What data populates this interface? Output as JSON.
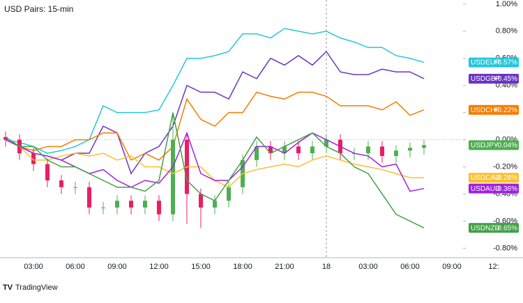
{
  "chart_data": {
    "type": "line",
    "title": "USD Pairs: 15-min",
    "source": "TradingView",
    "categories": [
      null,
      null,
      "03:00",
      null,
      null,
      "06:00",
      null,
      null,
      "09:00",
      null,
      null,
      "12:00",
      null,
      null,
      "15:00",
      null,
      null,
      "18:00",
      null,
      null,
      "21:00",
      null,
      null,
      "18",
      null,
      null,
      "03:00",
      null,
      null,
      "06:00",
      null,
      null,
      "09:00",
      null,
      null,
      "12:"
    ],
    "ylim": [
      -0.87,
      1.03
    ],
    "yticks": [
      {
        "value": 1.0,
        "label": "1.00%"
      },
      {
        "value": 0.8,
        "label": "0.80%"
      },
      {
        "value": 0.6,
        "label": "0.60%"
      },
      {
        "value": 0.4,
        "label": "0.40%"
      },
      {
        "value": 0.2,
        "label": "0.20%"
      },
      {
        "value": 0,
        "label": "0.00%"
      },
      {
        "value": -0.2,
        "label": "-0.20%"
      },
      {
        "value": -0.4,
        "label": "-0.40%"
      },
      {
        "value": -0.6,
        "label": "-0.60%"
      },
      {
        "value": -0.8,
        "label": "-0.80%"
      }
    ],
    "series": [
      {
        "name": "USDEUR",
        "color": "#26c6da",
        "values": [
          0,
          -0.02,
          -0.05,
          -0.1,
          -0.08,
          -0.05,
          0,
          0.25,
          0.2,
          0.2,
          0.2,
          0.22,
          0.4,
          0.6,
          0.6,
          0.62,
          0.65,
          0.78,
          0.78,
          0.75,
          0.82,
          0.8,
          0.78,
          0.8,
          0.75,
          0.72,
          0.68,
          0.68,
          0.62,
          0.6,
          0.57,
          null,
          null,
          null,
          null,
          null
        ],
        "value_labels": [
          null,
          null,
          null,
          null,
          null,
          null,
          null,
          null,
          null,
          null,
          null,
          null,
          null,
          null,
          null,
          null,
          null,
          null,
          null,
          null,
          null,
          null,
          null,
          null,
          null,
          null,
          null,
          null,
          null,
          null,
          "+0.57%",
          null,
          null,
          null,
          null,
          null
        ]
      },
      {
        "name": "USDGBP",
        "color": "#6a35c2",
        "values": [
          0,
          -0.05,
          -0.1,
          -0.12,
          -0.15,
          -0.1,
          -0.1,
          0.1,
          0.05,
          -0.25,
          -0.1,
          -0.05,
          0.1,
          0.4,
          0.35,
          0.35,
          0.3,
          0.5,
          0.45,
          0.6,
          0.55,
          0.62,
          0.55,
          0.65,
          0.5,
          0.48,
          0.48,
          0.52,
          0.5,
          0.5,
          0.45,
          null,
          null,
          null,
          null,
          null
        ],
        "value_labels": [
          null,
          null,
          null,
          null,
          null,
          null,
          null,
          null,
          null,
          null,
          null,
          null,
          null,
          null,
          null,
          null,
          null,
          null,
          null,
          null,
          null,
          null,
          null,
          null,
          null,
          null,
          null,
          null,
          null,
          null,
          "+0.45%",
          null,
          null,
          null,
          null,
          null
        ]
      },
      {
        "name": "USDCHF",
        "color": "#f57c00",
        "values": [
          0,
          -0.05,
          -0.08,
          -0.05,
          -0.05,
          0,
          0,
          0.05,
          0.05,
          -0.15,
          -0.1,
          -0.15,
          -0.05,
          0.3,
          0.15,
          0.1,
          0.2,
          0.2,
          0.35,
          0.32,
          0.3,
          0.35,
          0.35,
          0.32,
          0.25,
          0.25,
          0.25,
          0.22,
          0.28,
          0.18,
          0.22,
          null,
          null,
          null,
          null,
          null
        ],
        "value_labels": [
          null,
          null,
          null,
          null,
          null,
          null,
          null,
          null,
          null,
          null,
          null,
          null,
          null,
          null,
          null,
          null,
          null,
          null,
          null,
          null,
          null,
          null,
          null,
          null,
          null,
          null,
          null,
          null,
          null,
          null,
          "+0.22%",
          null,
          null,
          null,
          null,
          null
        ]
      },
      {
        "name": "USDJPY",
        "type": "candlestick",
        "color": "#4caf50",
        "up_color": "#4caf50",
        "down_color": "#e91e63",
        "open": [
          0.02,
          0,
          -0.1,
          -0.18,
          -0.3,
          -0.35,
          -0.35,
          -0.5,
          -0.5,
          -0.45,
          -0.5,
          -0.45,
          -0.55,
          0,
          -0.4,
          -0.5,
          -0.45,
          -0.35,
          -0.15,
          -0.05,
          -0.1,
          -0.05,
          -0.1,
          -0.05,
          0,
          -0.1,
          -0.1,
          -0.05,
          -0.12,
          -0.08,
          -0.06,
          null,
          null,
          null,
          null,
          null
        ],
        "high": [
          0.06,
          0.04,
          -0.06,
          -0.14,
          -0.26,
          -0.31,
          -0.31,
          -0.46,
          -0.41,
          -0.41,
          -0.41,
          -0.41,
          0.2,
          0.04,
          -0.36,
          -0.41,
          -0.31,
          -0.11,
          -0.01,
          -0.01,
          -0.01,
          -0.01,
          -0.01,
          0.04,
          0.04,
          -0.06,
          -0.01,
          -0.01,
          -0.04,
          -0.02,
          0,
          null,
          null,
          null,
          null,
          null
        ],
        "low": [
          -0.05,
          -0.15,
          -0.23,
          -0.35,
          -0.4,
          -0.4,
          -0.55,
          -0.55,
          -0.55,
          -0.55,
          -0.55,
          -0.6,
          -0.6,
          -0.62,
          -0.65,
          -0.55,
          -0.5,
          -0.4,
          -0.2,
          -0.15,
          -0.15,
          -0.15,
          -0.15,
          -0.1,
          -0.15,
          -0.15,
          -0.15,
          -0.17,
          -0.17,
          -0.13,
          -0.11,
          null,
          null,
          null,
          null,
          null
        ],
        "close": [
          0,
          -0.1,
          -0.18,
          -0.3,
          -0.35,
          -0.35,
          -0.5,
          -0.5,
          -0.45,
          -0.5,
          -0.45,
          -0.55,
          0,
          -0.4,
          -0.5,
          -0.45,
          -0.35,
          -0.15,
          -0.05,
          -0.1,
          -0.05,
          -0.1,
          -0.05,
          0,
          -0.1,
          -0.1,
          -0.05,
          -0.12,
          -0.08,
          -0.06,
          -0.04,
          null,
          null,
          null,
          null,
          null
        ],
        "value_labels": [
          null,
          null,
          null,
          null,
          null,
          null,
          null,
          null,
          null,
          null,
          null,
          null,
          null,
          null,
          null,
          null,
          null,
          null,
          null,
          null,
          null,
          null,
          null,
          null,
          null,
          null,
          null,
          null,
          null,
          null,
          "-0.04%",
          null,
          null,
          null,
          null,
          null
        ]
      },
      {
        "name": "USDCAD",
        "color": "#fbc02d",
        "values": [
          0,
          -0.05,
          -0.15,
          -0.15,
          -0.12,
          -0.1,
          -0.12,
          -0.1,
          -0.15,
          -0.12,
          -0.2,
          -0.2,
          -0.25,
          -0.2,
          -0.2,
          -0.3,
          -0.35,
          -0.25,
          -0.22,
          -0.2,
          -0.18,
          -0.2,
          -0.15,
          -0.12,
          -0.15,
          -0.18,
          -0.2,
          -0.22,
          -0.25,
          -0.28,
          -0.28,
          null,
          null,
          null,
          null,
          null
        ],
        "value_labels": [
          null,
          null,
          null,
          null,
          null,
          null,
          null,
          null,
          null,
          null,
          null,
          null,
          null,
          null,
          null,
          null,
          null,
          null,
          null,
          null,
          null,
          null,
          null,
          null,
          null,
          null,
          null,
          null,
          null,
          null,
          "-0.28%",
          null,
          null,
          null,
          null,
          null
        ]
      },
      {
        "name": "USDAUD",
        "color": "#a020e0",
        "values": [
          0,
          -0.05,
          -0.1,
          -0.12,
          -0.15,
          -0.2,
          -0.25,
          -0.22,
          -0.3,
          -0.35,
          -0.3,
          -0.32,
          -0.2,
          0.05,
          -0.25,
          -0.3,
          -0.3,
          -0.2,
          -0.05,
          -0.05,
          -0.1,
          -0.02,
          0.05,
          0,
          -0.05,
          -0.1,
          -0.12,
          -0.2,
          -0.18,
          -0.38,
          -0.36,
          null,
          null,
          null,
          null,
          null
        ],
        "value_labels": [
          null,
          null,
          null,
          null,
          null,
          null,
          null,
          null,
          null,
          null,
          null,
          null,
          null,
          null,
          null,
          null,
          null,
          null,
          null,
          null,
          null,
          null,
          null,
          null,
          null,
          null,
          null,
          null,
          null,
          null,
          "-0.36%",
          null,
          null,
          null,
          null,
          null
        ]
      },
      {
        "name": "USDNZD",
        "color": "#43a047",
        "values": [
          0.02,
          -0.05,
          -0.05,
          -0.15,
          -0.2,
          -0.2,
          -0.25,
          -0.3,
          -0.35,
          -0.35,
          -0.38,
          -0.3,
          0.2,
          -0.3,
          -0.4,
          -0.45,
          -0.3,
          -0.15,
          0.02,
          -0.1,
          -0.05,
          0,
          0.05,
          -0.05,
          -0.1,
          -0.2,
          -0.25,
          -0.4,
          -0.55,
          -0.6,
          -0.65,
          null,
          null,
          null,
          null,
          null
        ],
        "value_labels": [
          null,
          null,
          null,
          null,
          null,
          null,
          null,
          null,
          null,
          null,
          null,
          null,
          null,
          null,
          null,
          null,
          null,
          null,
          null,
          null,
          null,
          null,
          null,
          null,
          null,
          null,
          null,
          null,
          null,
          null,
          "-0.65%",
          null,
          null,
          null,
          null,
          null
        ]
      }
    ]
  }
}
